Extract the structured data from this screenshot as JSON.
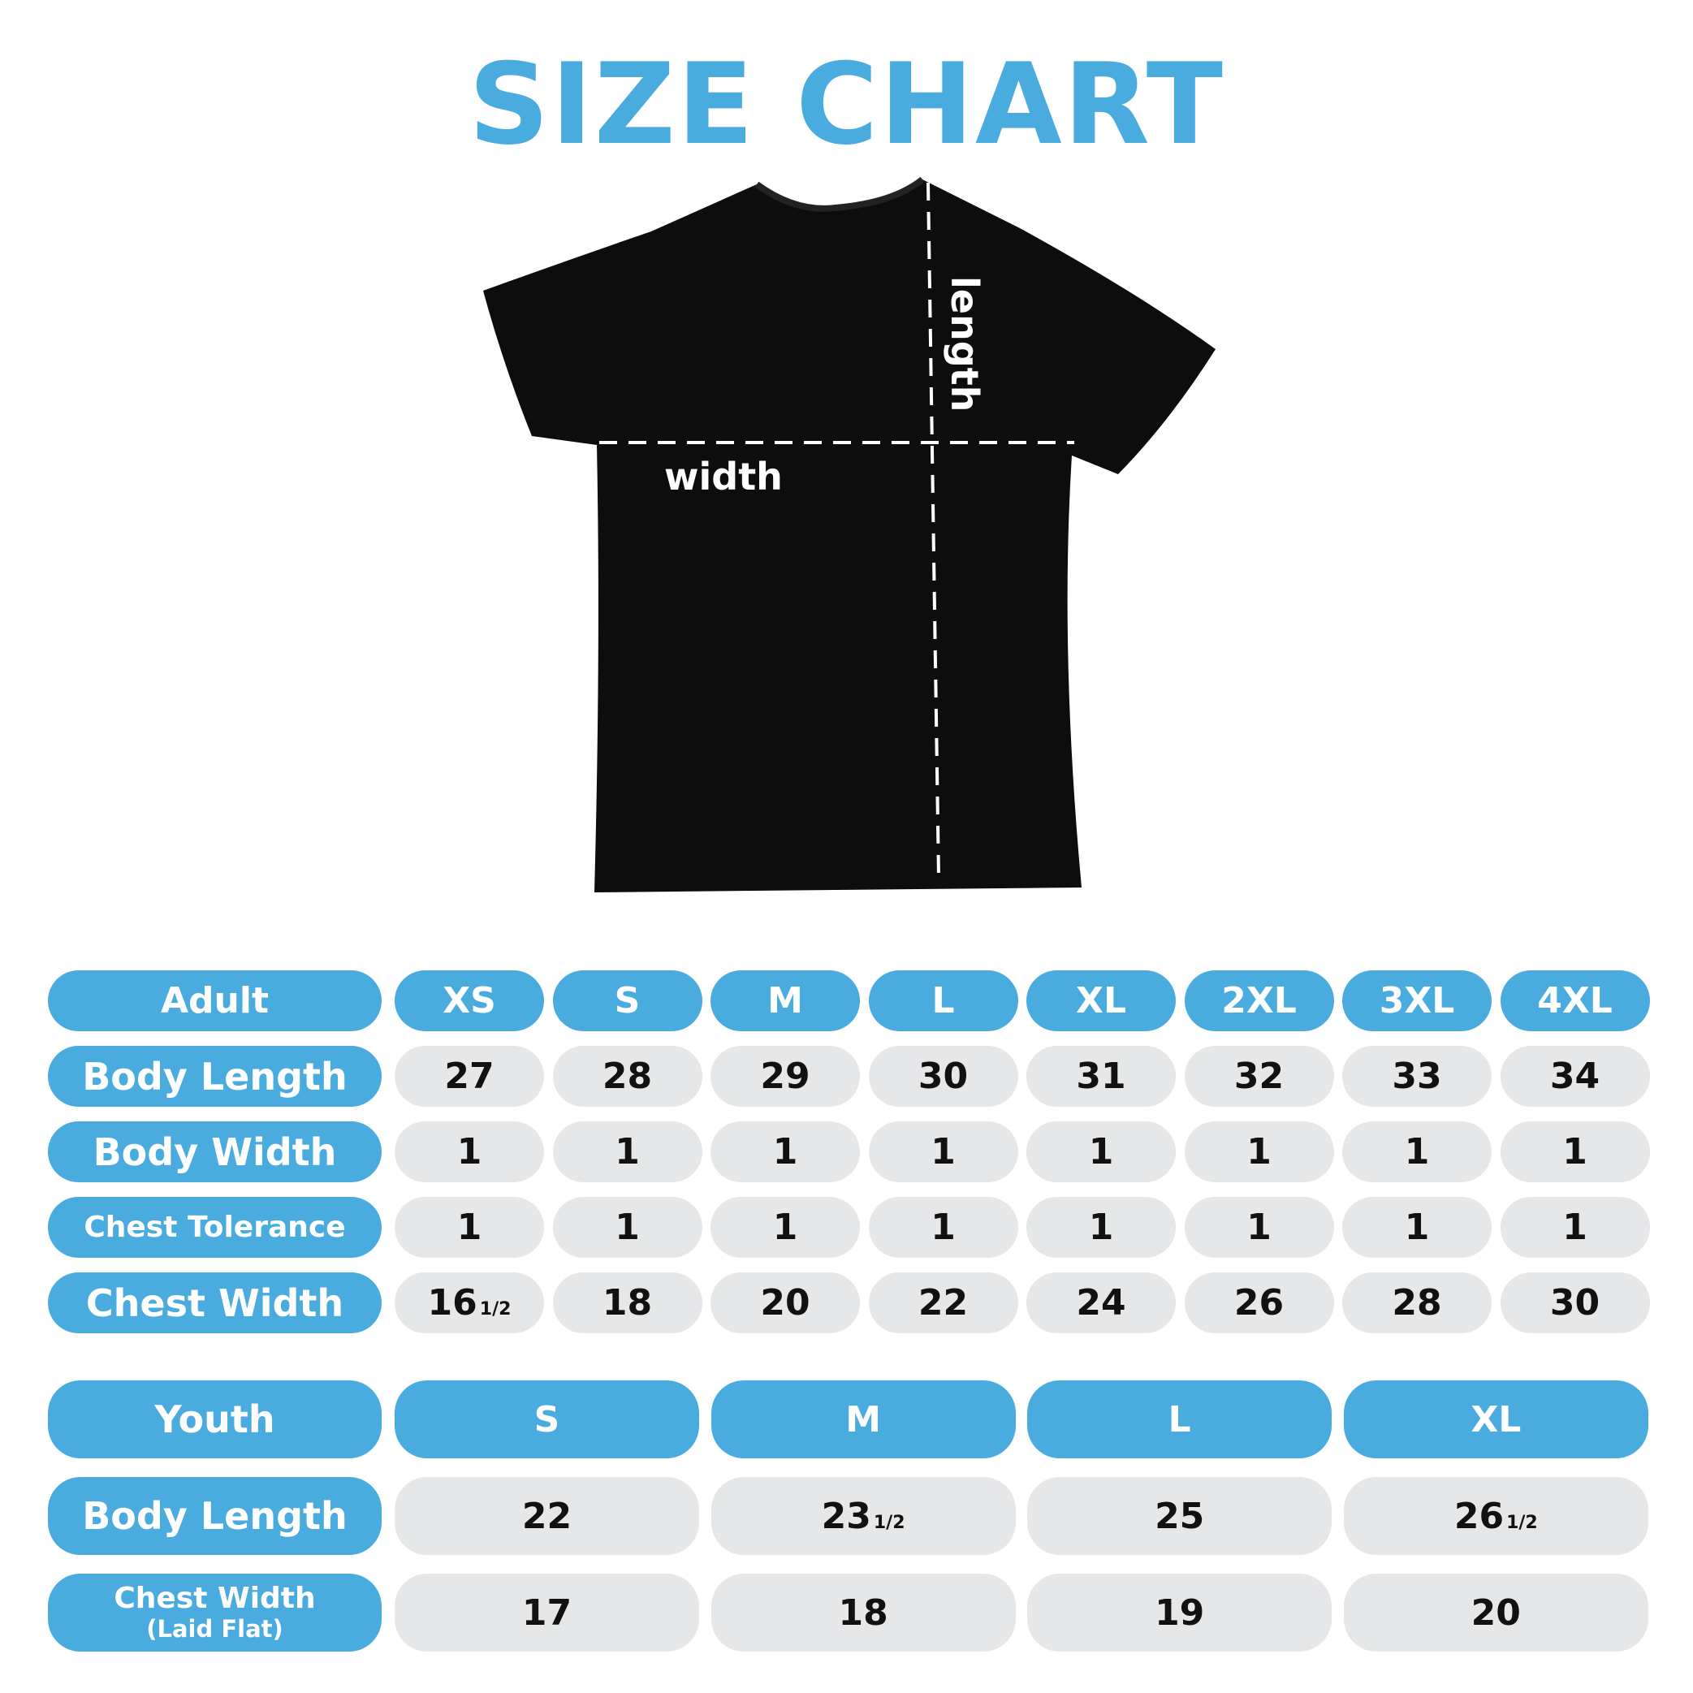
{
  "title": "SIZE CHART",
  "diagram": {
    "width_label": "width",
    "length_label": "length",
    "shirt_color": "#0d0d0d"
  },
  "colors": {
    "accent": "#4aabdf",
    "cell": "#e6e7e8"
  },
  "adult": {
    "header": "Adult",
    "sizes": [
      "XS",
      "S",
      "M",
      "L",
      "XL",
      "2XL",
      "3XL",
      "4XL"
    ],
    "rows": [
      {
        "label": "Body Length",
        "values": [
          {
            "v": "27"
          },
          {
            "v": "28"
          },
          {
            "v": "29"
          },
          {
            "v": "30"
          },
          {
            "v": "31"
          },
          {
            "v": "32"
          },
          {
            "v": "33"
          },
          {
            "v": "34"
          }
        ]
      },
      {
        "label": "Body Width",
        "values": [
          {
            "v": "1"
          },
          {
            "v": "1"
          },
          {
            "v": "1"
          },
          {
            "v": "1"
          },
          {
            "v": "1"
          },
          {
            "v": "1"
          },
          {
            "v": "1"
          },
          {
            "v": "1"
          }
        ]
      },
      {
        "label": "Chest Tolerance",
        "values": [
          {
            "v": "1"
          },
          {
            "v": "1"
          },
          {
            "v": "1"
          },
          {
            "v": "1"
          },
          {
            "v": "1"
          },
          {
            "v": "1"
          },
          {
            "v": "1"
          },
          {
            "v": "1"
          }
        ]
      },
      {
        "label": "Chest Width",
        "values": [
          {
            "v": "16",
            "f": "1/2"
          },
          {
            "v": "18"
          },
          {
            "v": "20"
          },
          {
            "v": "22"
          },
          {
            "v": "24"
          },
          {
            "v": "26"
          },
          {
            "v": "28"
          },
          {
            "v": "30"
          }
        ]
      }
    ]
  },
  "youth": {
    "header": "Youth",
    "sizes": [
      "S",
      "M",
      "L",
      "XL"
    ],
    "rows": [
      {
        "label": "Body Length",
        "values": [
          {
            "v": "22"
          },
          {
            "v": "23",
            "f": "1/2"
          },
          {
            "v": "25"
          },
          {
            "v": "26",
            "f": "1/2"
          }
        ]
      },
      {
        "label": "Chest Width",
        "sublabel": "(Laid Flat)",
        "values": [
          {
            "v": "17"
          },
          {
            "v": "18"
          },
          {
            "v": "19"
          },
          {
            "v": "20"
          }
        ]
      }
    ]
  }
}
